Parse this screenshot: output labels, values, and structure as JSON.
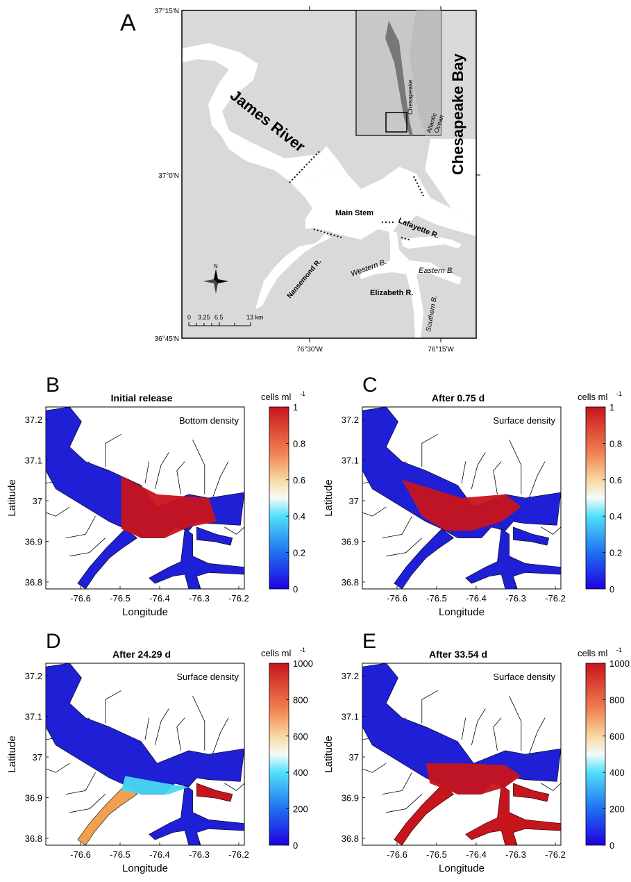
{
  "panel_a": {
    "letter": "A",
    "lat_labels": [
      "37°15'N",
      "37°0'N",
      "36°45'N"
    ],
    "lon_labels": [
      "76°30'W",
      "76°15'W"
    ],
    "places": {
      "james": "James River",
      "bay": "Chesapeake Bay",
      "main": "Main Stem",
      "lafayette": "Lafayette R.",
      "western": "Western B.",
      "eastern": "Eastern B.",
      "elizabeth": "Elizabeth R.",
      "nansemond": "Nansemond R.",
      "southern": "Southern B."
    },
    "inset": {
      "chesapeake": "Chesapeake",
      "atlantic": "Atlantic",
      "ocean": "Ocean"
    },
    "compass": "N",
    "scalebar": [
      "0",
      "3.25",
      "6.5",
      "13 km"
    ]
  },
  "axes": {
    "x_label": "Longitude",
    "y_label": "Latitude",
    "x_ticks": [
      "-76.6",
      "-76.5",
      "-76.4",
      "-76.3",
      "-76.2"
    ],
    "y_ticks": [
      "37.2",
      "37.1",
      "37",
      "36.9",
      "36.8"
    ]
  },
  "colorbar": {
    "unit": "cells ml",
    "exp": "-1",
    "ticks_small": [
      "1",
      "0.8",
      "0.6",
      "0.4",
      "0.2",
      "0"
    ],
    "ticks_large": [
      "1000",
      "800",
      "600",
      "400",
      "200",
      "0"
    ]
  },
  "panels": [
    {
      "letter": "B",
      "title": "Initial release",
      "subtitle": "Bottom density"
    },
    {
      "letter": "C",
      "title": "After 0.75 d",
      "subtitle": "Surface density"
    },
    {
      "letter": "D",
      "title": "After 24.29 d",
      "subtitle": "Surface density"
    },
    {
      "letter": "E",
      "title": "After 33.54 d",
      "subtitle": "Surface density"
    }
  ],
  "colors": {
    "land": "#d9d9d9",
    "water": "#ffffff",
    "blue": "#1f1fd6",
    "red": "#c8141c",
    "cyan": "#48d8f0"
  }
}
